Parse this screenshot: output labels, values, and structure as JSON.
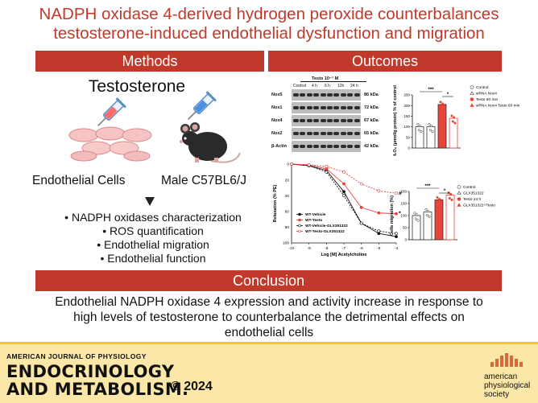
{
  "title_lines": [
    "NADPH oxidase 4-derived hydrogen peroxide counterbalances",
    "testosterone-induced endothelial dysfunction and migration"
  ],
  "methods": {
    "header": "Methods",
    "subject": "Testosterone",
    "cells_label": "Endothelial Cells",
    "mouse_label": "Male C57BL6/J",
    "bullets": [
      "NADPH oxidases characterization",
      "ROS quantification",
      "Endothelial migration",
      "Endothelial function"
    ]
  },
  "outcomes": {
    "header": "Outcomes",
    "western": {
      "treatment_label": "Testo 10⁻⁷ M",
      "lanes": [
        "Control",
        "4 h",
        "6 h",
        "12h",
        "24 h"
      ],
      "rows": [
        {
          "protein": "Nox5",
          "kda": "86 kDa"
        },
        {
          "protein": "Nox1",
          "kda": "72 kDa"
        },
        {
          "protein": "Nox4",
          "kda": "67 kDa"
        },
        {
          "protein": "Nox2",
          "kda": "65 kDa"
        },
        {
          "protein": "β-Actin",
          "kda": "42 kDa"
        }
      ]
    },
    "h2o2_chart": {
      "ylabel": "H₂O₂ (μmol/g protein) % of control",
      "yticks": [
        "0",
        "50",
        "100",
        "150",
        "200",
        "250"
      ],
      "legend": [
        "Control",
        "siRNA Nox4",
        "Testo 60 min",
        "siRNA Nox4 Testo 60 min"
      ],
      "stars": [
        "***",
        "*"
      ]
    },
    "relax_chart": {
      "ylabel": "Relaxation (% PE)",
      "xlabel": "Log [M] Acetylcholine",
      "xticks": [
        "-10",
        "-9",
        "-8",
        "-7",
        "-6",
        "-5",
        "-4"
      ],
      "yticks": [
        "0",
        "20",
        "40",
        "60",
        "80",
        "100"
      ],
      "legend": [
        "WT-Vehicle",
        "WT-Testo",
        "WT-Vehicle-GLX351322",
        "WT-Testo-GLX351322"
      ],
      "marks": [
        "#",
        "*"
      ]
    },
    "migration_chart": {
      "ylabel": "Cells migration (%)",
      "yticks": [
        "0",
        "50",
        "100",
        "150",
        "200"
      ],
      "legend": [
        "Control",
        "GLX351322",
        "Testo 24 h",
        "GLX351322+Testo"
      ],
      "stars": [
        "***",
        "*"
      ]
    }
  },
  "conclusion": {
    "header": "Conclusion",
    "text_lines": [
      "Endothelial NADPH oxidase 4 expression and activity increase in response to",
      "high levels of testosterone to counterbalance the detrimental effects on",
      "endothelial cells"
    ]
  },
  "footer": {
    "journal_small": "AMERICAN JOURNAL OF PHYSIOLOGY",
    "journal_line1": "ENDOCRINOLOGY",
    "journal_line2": "AND METABOLISM.",
    "year": "© 2024",
    "society": [
      "american",
      "physiological",
      "society"
    ]
  },
  "chart_data": [
    {
      "type": "bar",
      "categories": [
        "Control",
        "siRNA Nox4",
        "Testo 60 min",
        "siRNA Nox4 Testo 60 min"
      ],
      "values": [
        100,
        100,
        205,
        140
      ],
      "ylabel": "H₂O₂ (μmol/g protein) % of control",
      "ylim": [
        0,
        250
      ]
    },
    {
      "type": "line",
      "x": [
        -10,
        -9,
        -8,
        -7,
        -6,
        -5,
        -4
      ],
      "series": [
        {
          "name": "WT-Vehicle",
          "values": [
            0,
            2,
            8,
            35,
            75,
            88,
            92
          ]
        },
        {
          "name": "WT-Testo",
          "values": [
            0,
            1,
            6,
            25,
            55,
            62,
            63
          ]
        },
        {
          "name": "WT-Vehicle-GLX351322",
          "values": [
            0,
            2,
            10,
            40,
            75,
            85,
            88
          ]
        },
        {
          "name": "WT-Testo-GLX351322",
          "values": [
            0,
            1,
            3,
            10,
            25,
            34,
            37
          ]
        }
      ],
      "xlabel": "Log [M] Acetylcholine",
      "ylabel": "Relaxation (% PE)",
      "ylim": [
        0,
        100
      ]
    },
    {
      "type": "bar",
      "categories": [
        "Control",
        "GLX351322",
        "Testo 24 h",
        "GLX351322+Testo"
      ],
      "values": [
        100,
        115,
        165,
        185
      ],
      "ylabel": "Cells migration (%)",
      "ylim": [
        0,
        200
      ]
    }
  ]
}
